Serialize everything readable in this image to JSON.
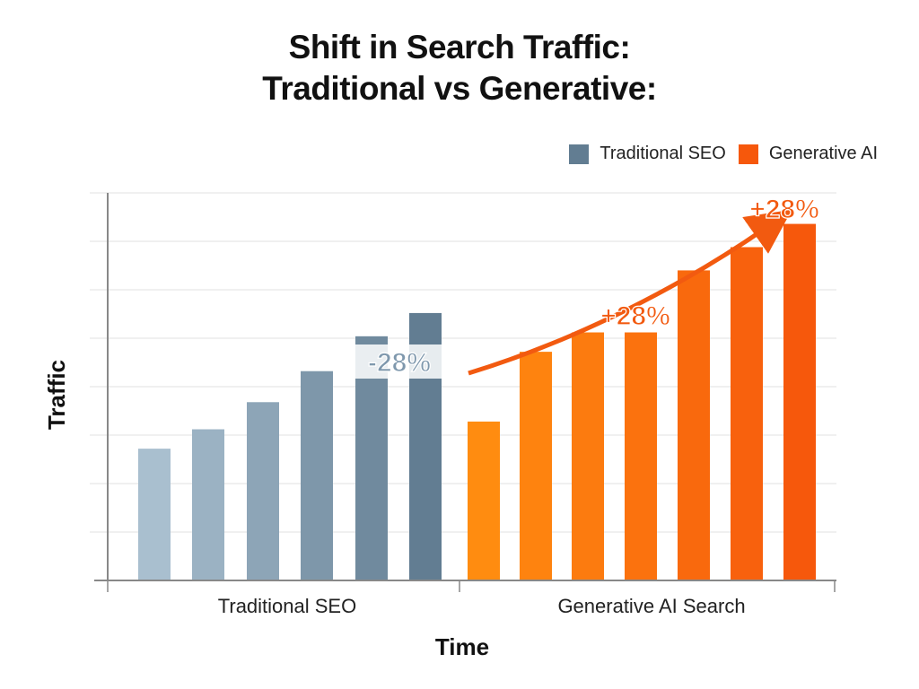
{
  "title_line1": "Shift in Search Traffic:",
  "title_line2": "Traditional vs Generative:",
  "colors": {
    "traditional_light": "#a9bfcf",
    "traditional_dark": "#627d92",
    "generative_light": "#ff8c10",
    "generative_dark": "#f6580c",
    "arrow": "#f25a10",
    "negative_annotation_fill": "#7f98ad",
    "grid": "#e8e8e8",
    "axis": "#888888"
  },
  "legend": [
    {
      "label": "Traditional SEO",
      "color": "#627d92"
    },
    {
      "label": "Generative AI",
      "color": "#f6580c"
    }
  ],
  "chart_data": {
    "type": "bar",
    "title": "Shift in Search Traffic: Traditional vs Generative:",
    "xlabel": "Time",
    "ylabel": "Traffic",
    "ylim": [
      0,
      100
    ],
    "grid": true,
    "legend_position": "top-right",
    "series": [
      {
        "name": "Traditional SEO",
        "group_label": "Traditional SEO",
        "values": [
          34,
          39,
          46,
          54,
          63,
          69
        ]
      },
      {
        "name": "Generative AI",
        "group_label": "Generative AI Search",
        "values": [
          41,
          59,
          64,
          64,
          80,
          86,
          92
        ]
      }
    ],
    "annotations": [
      {
        "text": "-28%",
        "series": "Traditional SEO"
      },
      {
        "text": "+28%",
        "series": "Generative AI"
      },
      {
        "text": "+28%",
        "series": "Generative AI"
      }
    ]
  }
}
